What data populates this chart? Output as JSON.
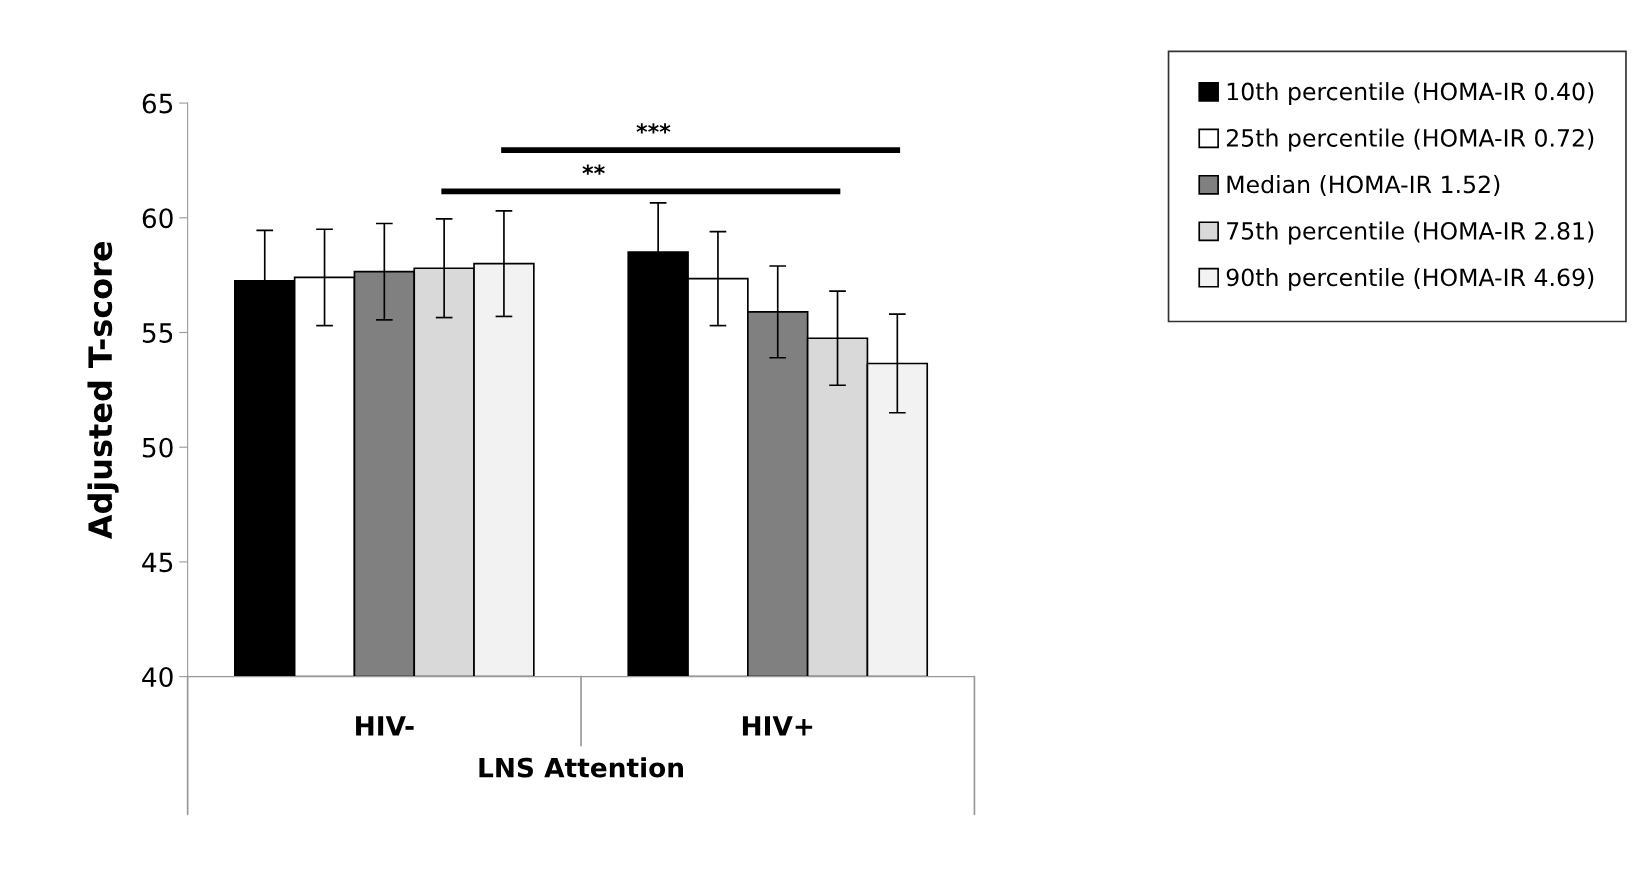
{
  "chart_data": {
    "type": "bar",
    "ylabel": "Adjusted T-score",
    "xlabel": "LNS Attention",
    "categories": [
      "HIV-",
      "HIV+"
    ],
    "series": [
      {
        "name": "10th percentile (HOMA-IR 0.40)",
        "color": "#000000",
        "values": [
          57.25,
          58.5
        ],
        "errors": [
          2.2,
          2.15
        ]
      },
      {
        "name": "25th percentile (HOMA-IR 0.72)",
        "color": "#ffffff",
        "values": [
          57.4,
          57.35
        ],
        "errors": [
          2.1,
          2.05
        ]
      },
      {
        "name": "Median (HOMA-IR 1.52)",
        "color": "#808080",
        "values": [
          57.65,
          55.9
        ],
        "errors": [
          2.1,
          2.0
        ]
      },
      {
        "name": "75th percentile (HOMA-IR 2.81)",
        "color": "#d9d9d9",
        "values": [
          57.8,
          54.75
        ],
        "errors": [
          2.15,
          2.05
        ]
      },
      {
        "name": "90th percentile (HOMA-IR 4.69)",
        "color": "#f2f2f2",
        "values": [
          58.0,
          53.65
        ],
        "errors": [
          2.3,
          2.15
        ]
      }
    ],
    "ylim": [
      40,
      65
    ],
    "yticks": [
      40,
      45,
      50,
      55,
      60,
      65
    ],
    "annotations": [
      "**",
      "***"
    ],
    "legend": "top right",
    "grid": false
  }
}
